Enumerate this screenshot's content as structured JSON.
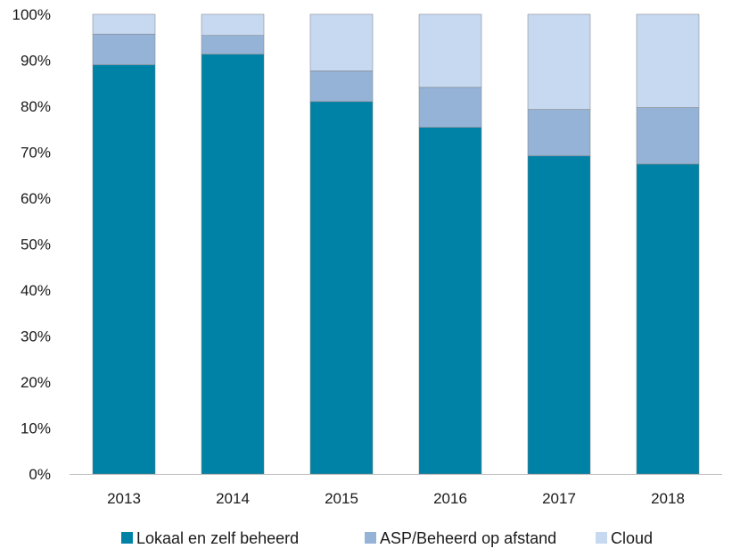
{
  "chart_data": {
    "type": "bar",
    "stacked": true,
    "percent_stacked": true,
    "categories": [
      "2013",
      "2014",
      "2015",
      "2016",
      "2017",
      "2018"
    ],
    "series": [
      {
        "name": "Lokaal en zelf beheerd",
        "color": "#0082a6",
        "values": [
          89,
          91.3,
          81,
          75.4,
          69.2,
          67.4
        ]
      },
      {
        "name": "ASP/Beheerd op afstand",
        "color": "#95b3d7",
        "values": [
          6.7,
          4.1,
          6.7,
          8.7,
          10.1,
          12.3
        ]
      },
      {
        "name": "Cloud",
        "color": "#c6d9f1",
        "values": [
          4.3,
          4.6,
          12.3,
          15.9,
          20.7,
          20.3
        ]
      }
    ],
    "title": "",
    "xlabel": "",
    "ylabel": "",
    "ylim": [
      0,
      100
    ],
    "yticks": [
      "0%",
      "10%",
      "20%",
      "30%",
      "40%",
      "50%",
      "60%",
      "70%",
      "80%",
      "90%",
      "100%"
    ],
    "grid": false,
    "legend_position": "bottom"
  }
}
